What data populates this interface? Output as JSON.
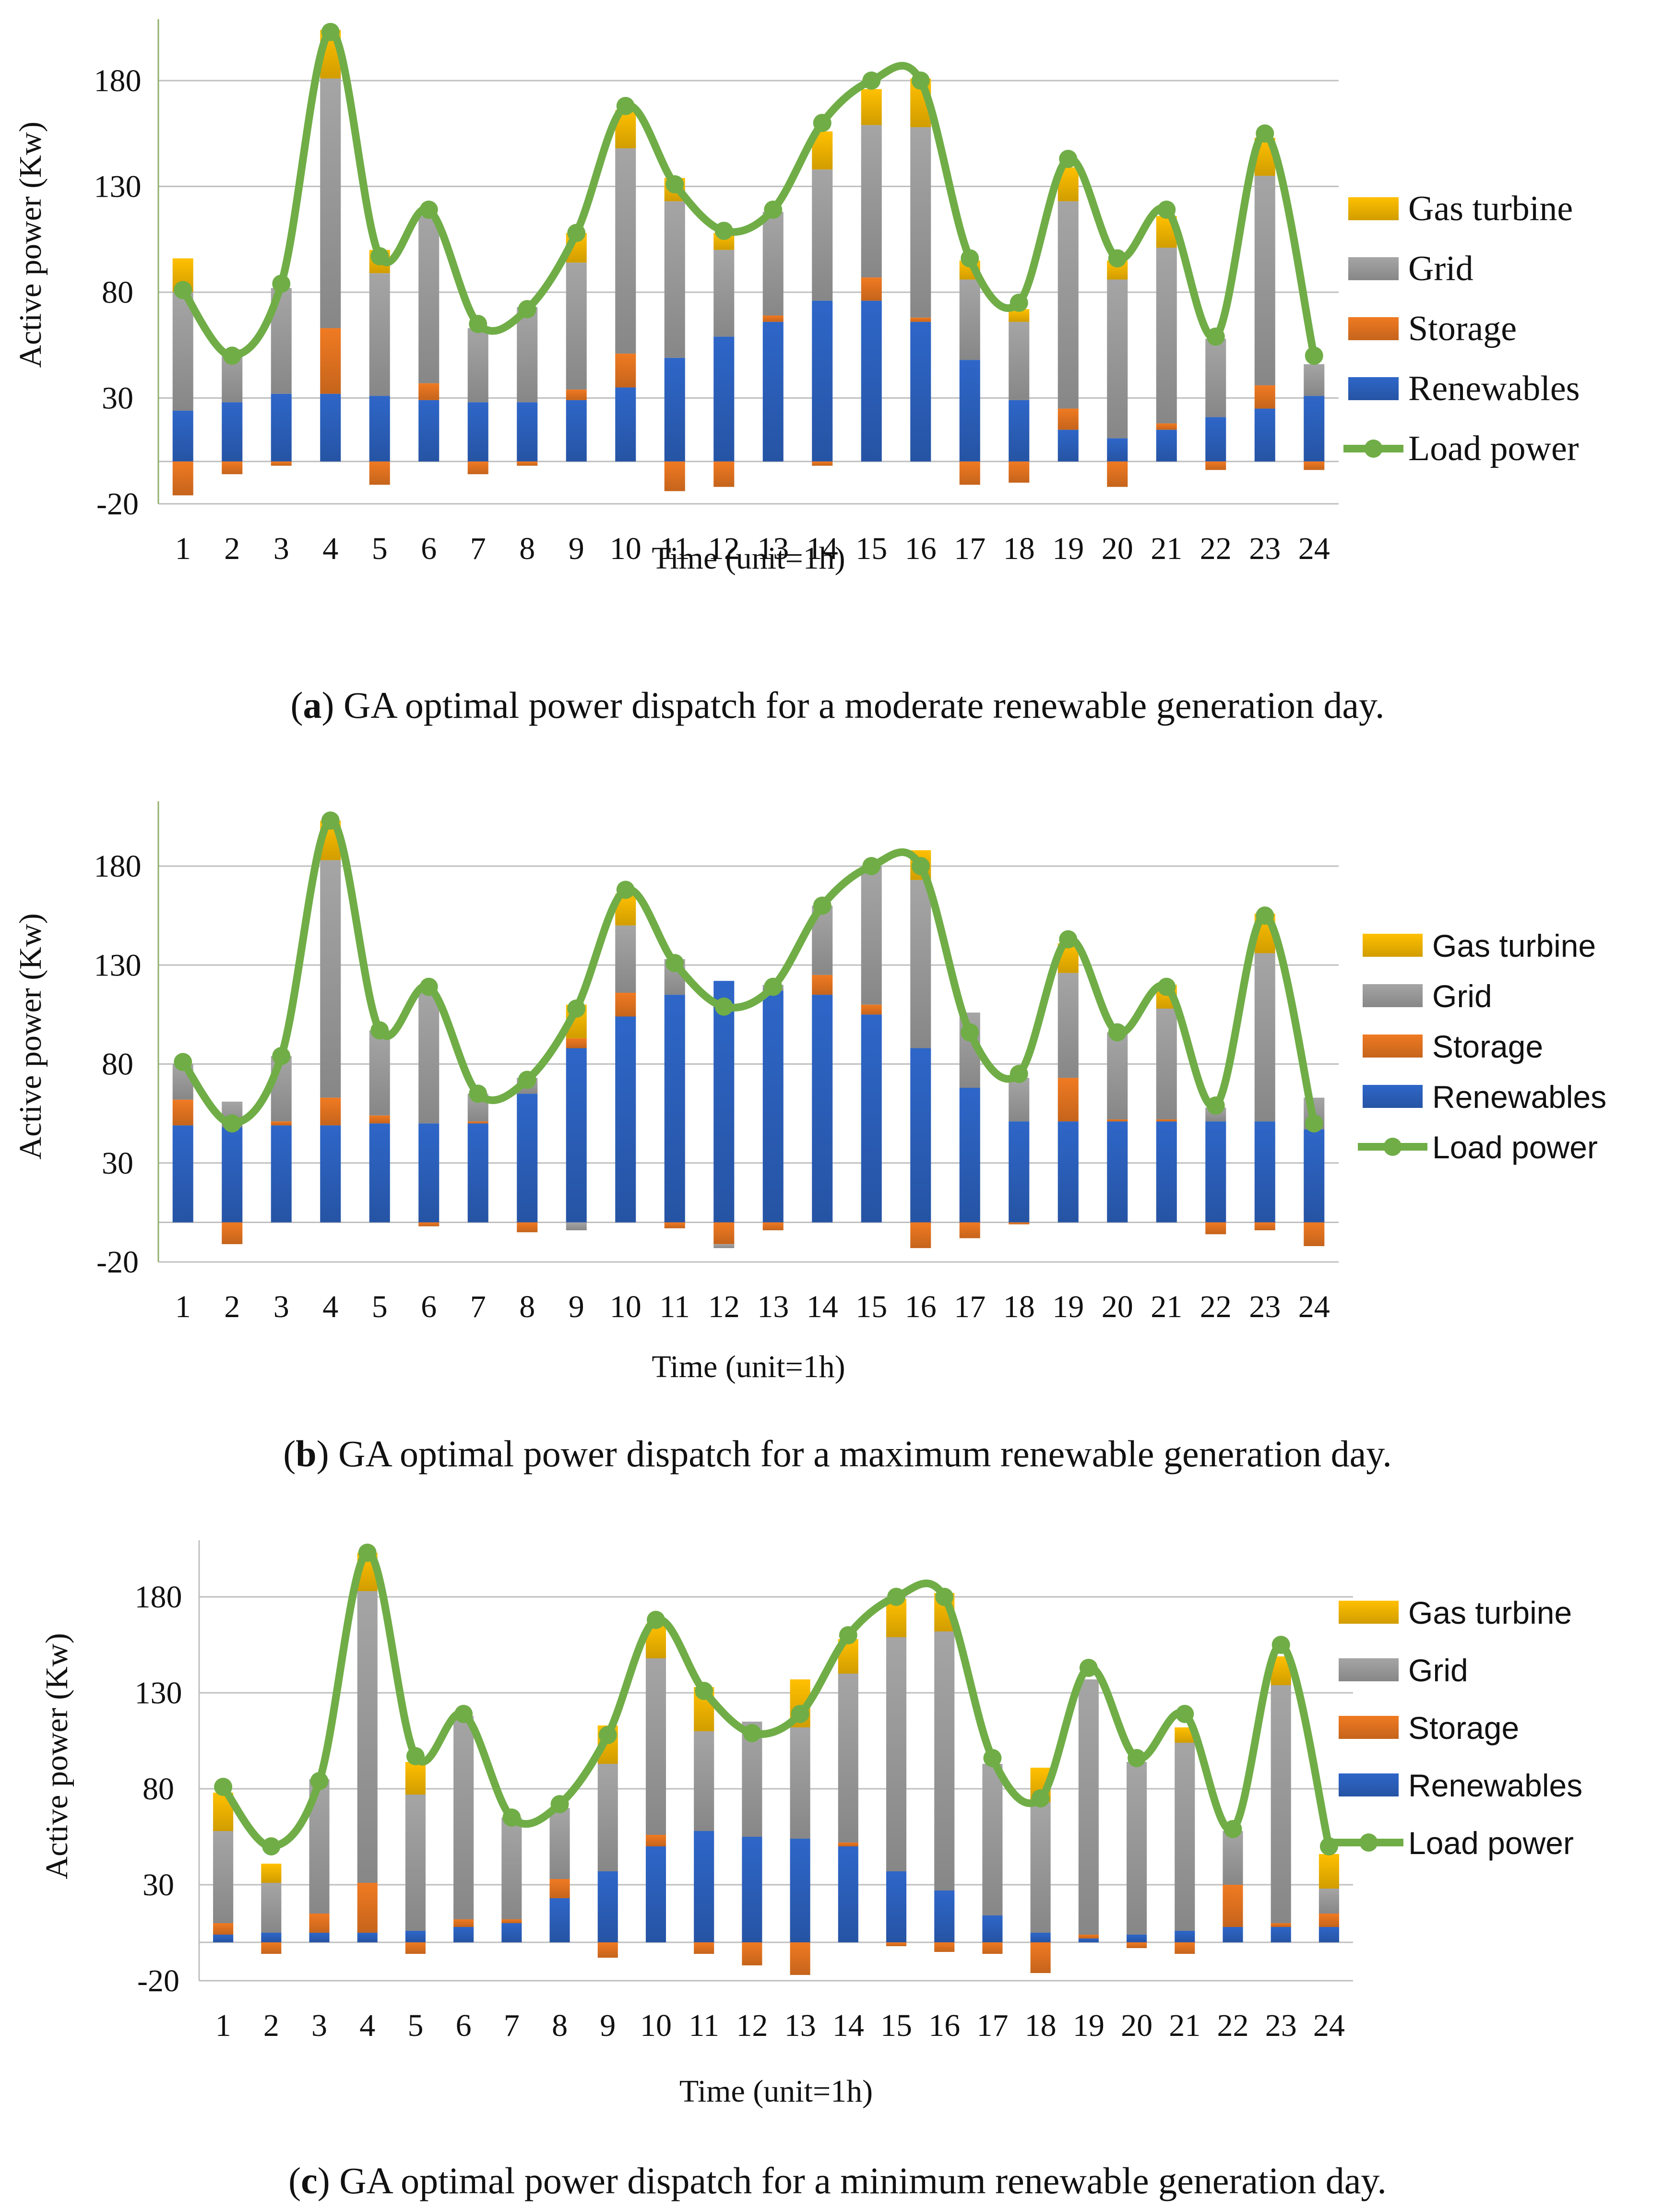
{
  "chart_data": [
    {
      "type": "bar",
      "id": "a",
      "caption_letter": "a",
      "caption_text": "GA optimal power dispatch for a moderate renewable generation day.",
      "xlabel": "Time (unit=1h)",
      "ylabel": "Active power (Kw)",
      "ylim": [
        -20,
        200
      ],
      "yticks": [
        "-20",
        "30",
        "80",
        "130",
        "180"
      ],
      "categories": [
        "1",
        "2",
        "3",
        "4",
        "5",
        "6",
        "7",
        "8",
        "9",
        "10",
        "11",
        "12",
        "13",
        "14",
        "15",
        "16",
        "17",
        "18",
        "19",
        "20",
        "21",
        "22",
        "23",
        "24"
      ],
      "series": [
        {
          "name": "Renewables",
          "color": "#2e66c8",
          "values": [
            24,
            28,
            32,
            32,
            31,
            29,
            28,
            28,
            29,
            35,
            49,
            59,
            66,
            76,
            76,
            66,
            48,
            29,
            15,
            11,
            15,
            21,
            25,
            31
          ]
        },
        {
          "name": "Storage",
          "color": "#f07a22",
          "values": [
            -16,
            -6,
            -2,
            31,
            -11,
            8,
            -6,
            -2,
            5,
            16,
            -14,
            -12,
            3,
            -2,
            11,
            2,
            -11,
            -10,
            10,
            -12,
            3,
            -4,
            11,
            -4
          ]
        },
        {
          "name": "Grid",
          "color": "#a5a5a5",
          "values": [
            56,
            25,
            50,
            118,
            58,
            79,
            35,
            45,
            60,
            97,
            74,
            41,
            49,
            62,
            72,
            90,
            38,
            37,
            98,
            75,
            83,
            37,
            99,
            15
          ]
        },
        {
          "name": "Gas turbine",
          "color": "#ffc000",
          "values": [
            16,
            0,
            0,
            23,
            11,
            0,
            0,
            0,
            14,
            18,
            11,
            8,
            0,
            18,
            17,
            23,
            9,
            6,
            16,
            9,
            15,
            0,
            18,
            0
          ]
        }
      ],
      "load": {
        "name": "Load power",
        "color": "#70ad47",
        "values": [
          81,
          50,
          84,
          203,
          97,
          119,
          65,
          72,
          108,
          168,
          131,
          109,
          119,
          160,
          180,
          180,
          96,
          75,
          143,
          96,
          119,
          59,
          155,
          50
        ]
      },
      "legend_order": [
        "Gas turbine",
        "Grid",
        "Storage",
        "Renewables",
        "Load power"
      ],
      "legend_position": "right"
    },
    {
      "type": "bar",
      "id": "b",
      "caption_letter": "b",
      "caption_text": "GA optimal power dispatch for a maximum renewable generation day.",
      "xlabel": "Time (unit=1h)",
      "ylabel": "Active power (Kw)",
      "ylim": [
        -20,
        200
      ],
      "yticks": [
        "-20",
        "30",
        "80",
        "130",
        "180"
      ],
      "categories": [
        "1",
        "2",
        "3",
        "4",
        "5",
        "6",
        "7",
        "8",
        "9",
        "10",
        "11",
        "12",
        "13",
        "14",
        "15",
        "16",
        "17",
        "18",
        "19",
        "20",
        "21",
        "22",
        "23",
        "24"
      ],
      "series": [
        {
          "name": "Renewables",
          "color": "#2e66c8",
          "values": [
            49,
            48,
            49,
            49,
            50,
            50,
            50,
            65,
            88,
            104,
            115,
            122,
            117,
            115,
            105,
            88,
            68,
            51,
            51,
            51,
            51,
            51,
            51,
            47
          ]
        },
        {
          "name": "Storage",
          "color": "#f07a22",
          "values": [
            13,
            -11,
            2,
            14,
            4,
            -2,
            1,
            -5,
            5,
            12,
            -3,
            -11,
            -4,
            10,
            5,
            -13,
            -8,
            -1,
            22,
            1,
            1,
            -6,
            -4,
            -12
          ]
        },
        {
          "name": "Grid",
          "color": "#a5a5a5",
          "values": [
            18,
            13,
            33,
            120,
            43,
            66,
            14,
            8,
            -4,
            34,
            18,
            -2,
            3,
            35,
            70,
            85,
            38,
            22,
            53,
            44,
            56,
            7,
            85,
            16
          ]
        },
        {
          "name": "Gas turbine",
          "color": "#ffc000",
          "values": [
            0,
            0,
            0,
            20,
            0,
            0,
            0,
            0,
            17,
            16,
            0,
            0,
            0,
            0,
            0,
            15,
            0,
            0,
            15,
            0,
            12,
            0,
            20,
            0
          ]
        }
      ],
      "load": {
        "name": "Load power",
        "color": "#70ad47",
        "values": [
          81,
          50,
          84,
          203,
          97,
          119,
          65,
          72,
          108,
          168,
          131,
          109,
          119,
          160,
          180,
          180,
          96,
          75,
          143,
          96,
          119,
          59,
          155,
          50
        ]
      },
      "legend_order": [
        "Gas turbine",
        "Grid",
        "Storage",
        "Renewables",
        "Load power"
      ],
      "legend_position": "right"
    },
    {
      "type": "bar",
      "id": "c",
      "caption_letter": "c",
      "caption_text": "GA optimal power dispatch for a minimum renewable generation day.",
      "xlabel": "Time (unit=1h)",
      "ylabel": "Active power (Kw)",
      "ylim": [
        -20,
        200
      ],
      "yticks": [
        "-20",
        "30",
        "80",
        "130",
        "180"
      ],
      "categories": [
        "1",
        "2",
        "3",
        "4",
        "5",
        "6",
        "7",
        "8",
        "9",
        "10",
        "11",
        "12",
        "13",
        "14",
        "15",
        "16",
        "17",
        "18",
        "19",
        "20",
        "21",
        "22",
        "23",
        "24"
      ],
      "series": [
        {
          "name": "Renewables",
          "color": "#2e66c8",
          "values": [
            4,
            5,
            5,
            5,
            6,
            8,
            10,
            23,
            37,
            50,
            58,
            55,
            54,
            50,
            37,
            27,
            14,
            5,
            2,
            4,
            6,
            8,
            8,
            8
          ]
        },
        {
          "name": "Storage",
          "color": "#f07a22",
          "values": [
            6,
            -6,
            10,
            26,
            -6,
            4,
            2,
            10,
            -8,
            6,
            -6,
            -12,
            -17,
            2,
            -2,
            -5,
            -6,
            -16,
            2,
            -3,
            -6,
            22,
            2,
            7
          ]
        },
        {
          "name": "Grid",
          "color": "#a5a5a5",
          "values": [
            48,
            26,
            70,
            152,
            71,
            106,
            53,
            37,
            56,
            92,
            52,
            60,
            58,
            88,
            122,
            135,
            79,
            68,
            133,
            90,
            98,
            28,
            124,
            13
          ]
        },
        {
          "name": "Gas turbine",
          "color": "#ffc000",
          "values": [
            20,
            10,
            0,
            20,
            17,
            0,
            0,
            0,
            20,
            18,
            23,
            0,
            25,
            18,
            20,
            20,
            0,
            18,
            0,
            0,
            8,
            0,
            15,
            18
          ]
        }
      ],
      "load": {
        "name": "Load power",
        "color": "#70ad47",
        "values": [
          81,
          50,
          84,
          203,
          97,
          119,
          65,
          72,
          108,
          168,
          131,
          109,
          119,
          160,
          180,
          180,
          96,
          75,
          143,
          96,
          119,
          59,
          155,
          50
        ]
      },
      "legend_order": [
        "Gas turbine",
        "Grid",
        "Storage",
        "Renewables",
        "Load power"
      ],
      "legend_position": "right"
    }
  ]
}
